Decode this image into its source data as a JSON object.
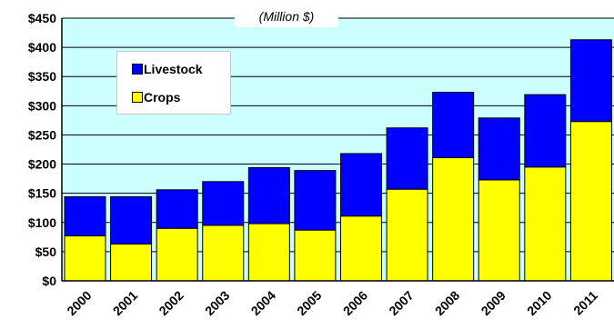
{
  "chart_data": {
    "type": "bar",
    "stacked": true,
    "title": "",
    "subtitle": "(Million $)",
    "categories": [
      "2000",
      "2001",
      "2002",
      "2003",
      "2004",
      "2005",
      "2006",
      "2007",
      "2008",
      "2009",
      "2010",
      "2011"
    ],
    "series": [
      {
        "name": "Crops",
        "color": "#ffff00",
        "values": [
          77,
          63,
          90,
          95,
          98,
          87,
          111,
          157,
          211,
          173,
          195,
          273
        ]
      },
      {
        "name": "Livestock",
        "color": "#0000ff",
        "values": [
          67,
          81,
          66,
          75,
          96,
          102,
          107,
          105,
          112,
          106,
          124,
          140
        ]
      }
    ],
    "ylim": [
      0,
      450
    ],
    "ytick_step": 50,
    "ytick_labels": [
      "$0",
      "$50",
      "$100",
      "$150",
      "$200",
      "$250",
      "$300",
      "$350",
      "$400",
      "$450"
    ],
    "xlabel": "",
    "ylabel": "",
    "plot_background": "#ccffff",
    "grid": true,
    "legend_position": "top-left",
    "legend_order": [
      "Livestock",
      "Crops"
    ]
  }
}
